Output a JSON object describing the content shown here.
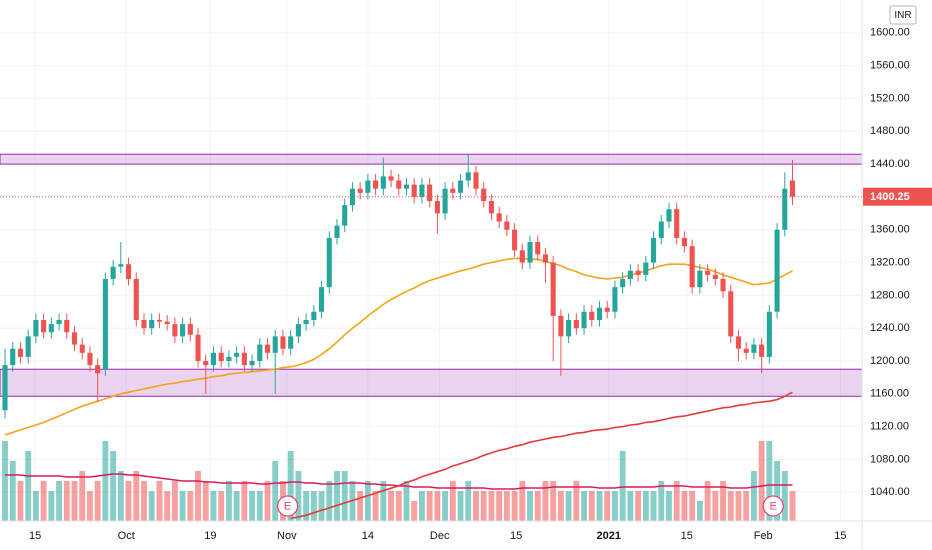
{
  "chart_data": {
    "type": "candlestick",
    "currency": "INR",
    "up_color": "#26a69a",
    "down_color": "#ef5350",
    "open": [
      1140,
      1195,
      1215,
      1205,
      1230,
      1250,
      1235,
      1245,
      1250,
      1235,
      1220,
      1210,
      1195,
      1190,
      1300,
      1315,
      1318,
      1300,
      1250,
      1240,
      1250,
      1248,
      1245,
      1230,
      1245,
      1232,
      1200,
      1195,
      1210,
      1200,
      1205,
      1210,
      1195,
      1200,
      1220,
      1210,
      1230,
      1215,
      1230,
      1245,
      1250,
      1260,
      1290,
      1350,
      1365,
      1390,
      1410,
      1405,
      1420,
      1410,
      1425,
      1420,
      1410,
      1415,
      1400,
      1415,
      1395,
      1380,
      1410,
      1405,
      1420,
      1430,
      1410,
      1395,
      1380,
      1370,
      1360,
      1335,
      1320,
      1345,
      1330,
      1320,
      1255,
      1230,
      1250,
      1240,
      1260,
      1250,
      1265,
      1260,
      1290,
      1300,
      1310,
      1305,
      1320,
      1350,
      1370,
      1385,
      1350,
      1340,
      1290,
      1310,
      1305,
      1300,
      1285,
      1230,
      1215,
      1210,
      1220,
      1205,
      1260,
      1360,
      1420
    ],
    "high": [
      1215,
      1223,
      1223,
      1238,
      1258,
      1258,
      1253,
      1258,
      1258,
      1243,
      1228,
      1218,
      1203,
      1308,
      1323,
      1345,
      1326,
      1308,
      1258,
      1258,
      1258,
      1256,
      1253,
      1253,
      1253,
      1240,
      1208,
      1218,
      1218,
      1213,
      1218,
      1218,
      1208,
      1228,
      1228,
      1238,
      1238,
      1238,
      1253,
      1258,
      1268,
      1298,
      1358,
      1373,
      1398,
      1418,
      1418,
      1428,
      1428,
      1448,
      1433,
      1428,
      1423,
      1423,
      1423,
      1423,
      1403,
      1418,
      1418,
      1428,
      1452,
      1438,
      1418,
      1403,
      1388,
      1378,
      1368,
      1343,
      1353,
      1353,
      1338,
      1328,
      1263,
      1258,
      1258,
      1268,
      1268,
      1273,
      1273,
      1298,
      1308,
      1318,
      1318,
      1328,
      1358,
      1378,
      1393,
      1393,
      1358,
      1348,
      1318,
      1318,
      1313,
      1308,
      1293,
      1238,
      1223,
      1228,
      1228,
      1268,
      1368,
      1430,
      1445
    ],
    "low": [
      1130,
      1187,
      1197,
      1197,
      1222,
      1227,
      1227,
      1237,
      1227,
      1212,
      1202,
      1187,
      1150,
      1182,
      1292,
      1307,
      1292,
      1242,
      1232,
      1232,
      1240,
      1237,
      1222,
      1222,
      1224,
      1192,
      1160,
      1187,
      1192,
      1192,
      1197,
      1187,
      1187,
      1192,
      1202,
      1160,
      1207,
      1207,
      1222,
      1237,
      1242,
      1252,
      1282,
      1342,
      1357,
      1382,
      1397,
      1397,
      1402,
      1402,
      1412,
      1402,
      1402,
      1392,
      1392,
      1387,
      1355,
      1372,
      1397,
      1397,
      1412,
      1402,
      1387,
      1372,
      1362,
      1352,
      1327,
      1312,
      1312,
      1322,
      1295,
      1200,
      1182,
      1222,
      1232,
      1232,
      1242,
      1242,
      1252,
      1252,
      1282,
      1292,
      1297,
      1297,
      1312,
      1342,
      1362,
      1342,
      1332,
      1282,
      1282,
      1297,
      1292,
      1277,
      1222,
      1200,
      1202,
      1202,
      1185,
      1197,
      1252,
      1352,
      1390
    ],
    "close": [
      1195,
      1215,
      1205,
      1230,
      1250,
      1235,
      1245,
      1250,
      1235,
      1220,
      1210,
      1195,
      1185,
      1300,
      1315,
      1318,
      1300,
      1250,
      1240,
      1250,
      1248,
      1245,
      1230,
      1245,
      1232,
      1200,
      1195,
      1210,
      1200,
      1205,
      1210,
      1195,
      1200,
      1220,
      1210,
      1230,
      1215,
      1230,
      1245,
      1250,
      1260,
      1290,
      1350,
      1365,
      1390,
      1410,
      1405,
      1420,
      1410,
      1425,
      1420,
      1410,
      1415,
      1400,
      1415,
      1395,
      1380,
      1410,
      1405,
      1420,
      1430,
      1410,
      1395,
      1380,
      1370,
      1360,
      1335,
      1320,
      1345,
      1330,
      1320,
      1255,
      1230,
      1250,
      1240,
      1260,
      1250,
      1265,
      1260,
      1290,
      1300,
      1310,
      1305,
      1320,
      1350,
      1370,
      1385,
      1350,
      1340,
      1290,
      1310,
      1305,
      1300,
      1285,
      1230,
      1215,
      1210,
      1220,
      1205,
      1260,
      1360,
      1410,
      1400.25
    ],
    "volume": [
      8,
      6,
      4,
      7,
      3,
      4,
      3,
      4,
      4,
      4,
      5,
      3,
      4,
      8,
      7,
      5,
      4,
      5,
      4,
      3,
      4,
      3,
      4,
      3,
      3,
      5,
      4,
      3,
      3,
      4,
      3,
      4,
      3,
      3,
      4,
      6,
      4,
      7,
      5,
      3,
      3,
      3,
      4,
      5,
      5,
      4,
      3,
      4,
      3,
      4,
      3,
      3,
      4,
      2,
      3,
      3,
      3,
      3,
      4,
      3,
      4,
      3,
      3,
      3,
      3,
      3,
      3,
      4,
      3,
      3,
      4,
      4,
      3,
      3,
      4,
      3,
      3,
      3,
      3,
      3,
      7,
      3,
      3,
      3,
      3,
      4,
      3,
      4,
      3,
      3,
      2,
      4,
      3,
      4,
      3,
      3,
      3,
      5,
      8,
      8,
      6,
      5,
      3
    ],
    "volume_ma": {
      "color": "#d81b60",
      "values": [
        4.6,
        4.6,
        4.6,
        4.5,
        4.5,
        4.5,
        4.5,
        4.5,
        4.4,
        4.4,
        4.4,
        4.4,
        4.5,
        4.6,
        4.7,
        4.7,
        4.6,
        4.6,
        4.5,
        4.4,
        4.3,
        4.2,
        4.1,
        4.0,
        4.0,
        4.0,
        3.9,
        3.9,
        3.8,
        3.8,
        3.8,
        3.8,
        3.8,
        3.7,
        3.7,
        3.8,
        3.8,
        3.9,
        3.9,
        3.8,
        3.8,
        3.7,
        3.7,
        3.7,
        3.8,
        3.8,
        3.8,
        3.7,
        3.7,
        3.6,
        3.6,
        3.5,
        3.5,
        3.4,
        3.4,
        3.4,
        3.3,
        3.3,
        3.3,
        3.3,
        3.3,
        3.3,
        3.3,
        3.2,
        3.2,
        3.2,
        3.2,
        3.3,
        3.3,
        3.3,
        3.3,
        3.4,
        3.4,
        3.4,
        3.4,
        3.4,
        3.4,
        3.3,
        3.3,
        3.3,
        3.4,
        3.4,
        3.4,
        3.4,
        3.4,
        3.5,
        3.5,
        3.5,
        3.5,
        3.4,
        3.4,
        3.4,
        3.4,
        3.4,
        3.3,
        3.3,
        3.3,
        3.4,
        3.5,
        3.6,
        3.6,
        3.6,
        3.6
      ]
    },
    "vlim": [
      0,
      10
    ],
    "overlays": [
      {
        "color": "#f5a31a",
        "values": [
          1110,
          1113,
          1116,
          1119,
          1122,
          1125,
          1129,
          1133,
          1137,
          1141,
          1145,
          1148,
          1151,
          1154,
          1157,
          1160,
          1162,
          1164,
          1166,
          1168,
          1170,
          1172,
          1173,
          1175,
          1176,
          1178,
          1179,
          1181,
          1182,
          1184,
          1185,
          1186,
          1187,
          1188,
          1189,
          1190,
          1192,
          1193,
          1195,
          1198,
          1202,
          1208,
          1215,
          1223,
          1232,
          1240,
          1247,
          1255,
          1262,
          1269,
          1275,
          1280,
          1285,
          1289,
          1294,
          1298,
          1301,
          1304,
          1307,
          1310,
          1312,
          1315,
          1318,
          1320,
          1322,
          1324,
          1325,
          1325,
          1324,
          1324,
          1321,
          1319,
          1316,
          1312,
          1309,
          1305,
          1303,
          1301,
          1300,
          1301,
          1302,
          1305,
          1307,
          1310,
          1313,
          1316,
          1318,
          1318,
          1318,
          1316,
          1314,
          1312,
          1309,
          1305,
          1302,
          1299,
          1296,
          1293,
          1294,
          1295,
          1300,
          1305,
          1310
        ]
      },
      {
        "color": "#e53935",
        "values": [
          null,
          null,
          null,
          null,
          null,
          null,
          null,
          null,
          null,
          null,
          null,
          null,
          null,
          null,
          null,
          null,
          null,
          null,
          null,
          null,
          null,
          null,
          null,
          null,
          null,
          null,
          null,
          null,
          null,
          null,
          null,
          null,
          null,
          null,
          null,
          null,
          null,
          1008,
          1010,
          1012,
          1015,
          1018,
          1021,
          1024,
          1027,
          1030,
          1033,
          1036,
          1039,
          1042,
          1045,
          1048,
          1052,
          1055,
          1059,
          1062,
          1065,
          1068,
          1072,
          1075,
          1078,
          1081,
          1085,
          1088,
          1091,
          1093,
          1096,
          1098,
          1101,
          1103,
          1105,
          1107,
          1108,
          1110,
          1112,
          1113,
          1115,
          1116,
          1117,
          1119,
          1120,
          1122,
          1123,
          1125,
          1126,
          1128,
          1130,
          1132,
          1133,
          1135,
          1137,
          1139,
          1141,
          1143,
          1144,
          1146,
          1147,
          1149,
          1150,
          1151,
          1153,
          1157,
          1162
        ]
      }
    ],
    "zones": [
      {
        "low": 1440,
        "high": 1452
      },
      {
        "low": 1157,
        "high": 1190
      }
    ],
    "zone_color": "#9c27b0",
    "events": [
      {
        "x": 36.6,
        "label": "E"
      },
      {
        "x": 99.5,
        "label": "E"
      }
    ],
    "xlim": [
      -0.65,
      111
    ],
    "xticks": [
      {
        "value": 3.9,
        "label": "15"
      },
      {
        "value": 15.7,
        "label": "Oct"
      },
      {
        "value": 26.6,
        "label": "19"
      },
      {
        "value": 36.5,
        "label": "Nov"
      },
      {
        "value": 47,
        "label": "14"
      },
      {
        "value": 56.3,
        "label": "Dec"
      },
      {
        "value": 66.2,
        "label": "15"
      },
      {
        "value": 78.2,
        "label": "2021"
      },
      {
        "value": 88.3,
        "label": "15"
      },
      {
        "value": 98.2,
        "label": "Feb"
      },
      {
        "value": 108.2,
        "label": "15"
      }
    ],
    "ylim": [
      1005,
      1640
    ],
    "yticks": [
      {
        "value": 1040,
        "label": "1040.00"
      },
      {
        "value": 1080,
        "label": "1080.00"
      },
      {
        "value": 1120,
        "label": "1120.00"
      },
      {
        "value": 1160,
        "label": "1160.00"
      },
      {
        "value": 1200,
        "label": "1200.00"
      },
      {
        "value": 1240,
        "label": "1240.00"
      },
      {
        "value": 1280,
        "label": "1280.00"
      },
      {
        "value": 1320,
        "label": "1320.00"
      },
      {
        "value": 1360,
        "label": "1360.00"
      },
      {
        "value": 1400,
        "label": "1400.00"
      },
      {
        "value": 1440,
        "label": "1440.00"
      },
      {
        "value": 1480,
        "label": "1480.00"
      },
      {
        "value": 1520,
        "label": "1520.00"
      },
      {
        "value": 1560,
        "label": "1560.00"
      },
      {
        "value": 1600,
        "label": "1600.00"
      }
    ],
    "grid": true
  }
}
